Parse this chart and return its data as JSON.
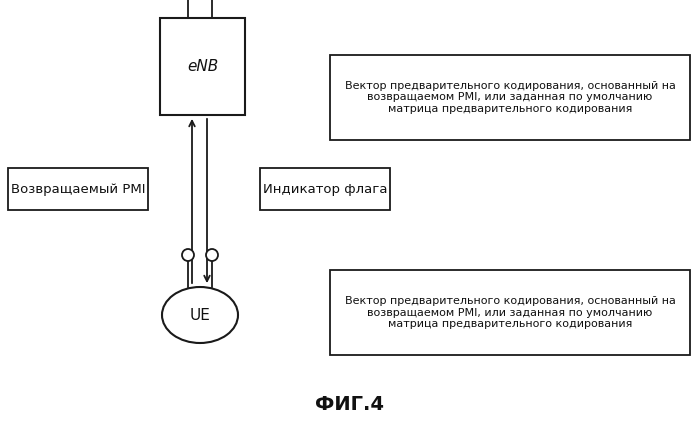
{
  "bg_color": "#ffffff",
  "fig_title": "ФИГ.4",
  "enb_label": "eNB",
  "ue_label": "UE",
  "pmi_label": "Возвращаемый PMI",
  "flag_label": "Индикатор флага",
  "top_text": "Вектор предварительного кодирования, основанный на\nвозвращаемом PMI, или заданная по умолчанию\nматрица предварительного кодирования",
  "bottom_text": "Вектор предварительного кодирования, основанный на\nвозвращаемом PMI, или заданная по умолчанию\nматрица предварительного кодирования",
  "line_color": "#1a1a1a",
  "box_face": "#ffffff",
  "box_edge": "#1a1a1a",
  "text_color": "#111111",
  "font_size_label": 9.5,
  "font_size_entity": 11,
  "font_size_text": 8.0,
  "font_size_title": 14
}
